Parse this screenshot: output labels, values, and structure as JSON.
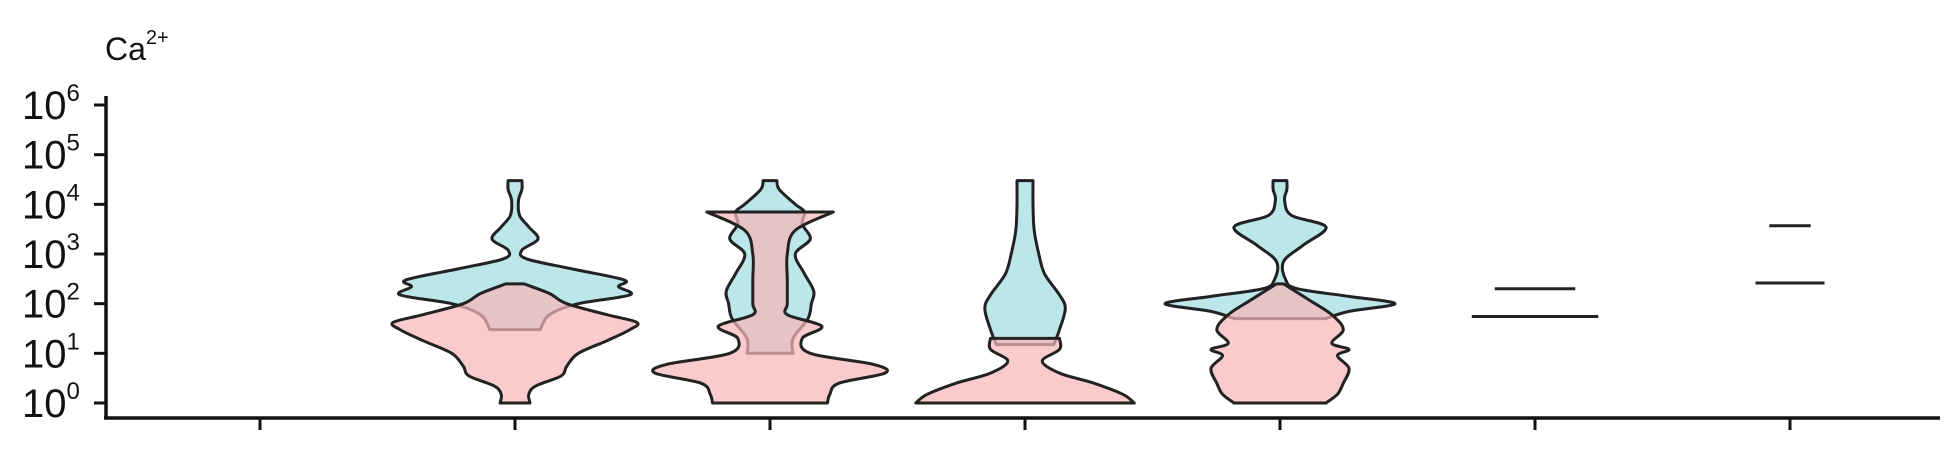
{
  "chart_data": {
    "type": "violin",
    "title_base": "Ca",
    "title_sup": "2+",
    "y_scale": "log10",
    "ylim": [
      1,
      1000000
    ],
    "yticks": [
      {
        "base": "10",
        "exp": "0"
      },
      {
        "base": "10",
        "exp": "1"
      },
      {
        "base": "10",
        "exp": "2"
      },
      {
        "base": "10",
        "exp": "3"
      },
      {
        "base": "10",
        "exp": "4"
      },
      {
        "base": "10",
        "exp": "5"
      },
      {
        "base": "10",
        "exp": "6"
      }
    ],
    "x_tick_count": 7,
    "colors": {
      "upper": "#a8dfe4",
      "lower": "#f7b7b8",
      "outline": "#222222",
      "upper_opacity": 0.78,
      "lower_opacity": 0.72
    },
    "groups": [
      {
        "index": 0,
        "upper": null,
        "lower": null
      },
      {
        "index": 1,
        "upper": {
          "range": [
            30,
            30000
          ],
          "profile": [
            [
              30,
              0.22
            ],
            [
              60,
              0.3
            ],
            [
              100,
              0.55
            ],
            [
              150,
              1.0
            ],
            [
              220,
              0.9
            ],
            [
              300,
              0.95
            ],
            [
              500,
              0.5
            ],
            [
              800,
              0.1
            ],
            [
              1200,
              0.06
            ],
            [
              2000,
              0.2
            ],
            [
              3500,
              0.12
            ],
            [
              6000,
              0.04
            ],
            [
              12000,
              0.03
            ],
            [
              20000,
              0.06
            ],
            [
              30000,
              0.06
            ]
          ]
        },
        "lower": {
          "range": [
            1,
            250
          ],
          "profile": [
            [
              1,
              0.13
            ],
            [
              1.5,
              0.12
            ],
            [
              2.2,
              0.18
            ],
            [
              3.5,
              0.4
            ],
            [
              5.5,
              0.45
            ],
            [
              10,
              0.55
            ],
            [
              18,
              0.8
            ],
            [
              30,
              1.0
            ],
            [
              42,
              1.06
            ],
            [
              60,
              0.8
            ],
            [
              100,
              0.45
            ],
            [
              160,
              0.3
            ],
            [
              250,
              0.08
            ]
          ]
        }
      },
      {
        "index": 2,
        "upper": {
          "range": [
            10,
            30000
          ],
          "profile": [
            [
              10,
              0.2
            ],
            [
              20,
              0.2
            ],
            [
              50,
              0.33
            ],
            [
              100,
              0.36
            ],
            [
              180,
              0.38
            ],
            [
              400,
              0.3
            ],
            [
              1000,
              0.22
            ],
            [
              2000,
              0.35
            ],
            [
              4000,
              0.28
            ],
            [
              7000,
              0.3
            ],
            [
              10000,
              0.22
            ],
            [
              20000,
              0.08
            ],
            [
              30000,
              0.06
            ]
          ]
        },
        "lower": {
          "range": [
            1,
            7000
          ],
          "profile": [
            [
              1,
              0.5
            ],
            [
              1.5,
              0.52
            ],
            [
              2.5,
              0.6
            ],
            [
              4,
              1.0
            ],
            [
              6,
              0.9
            ],
            [
              10,
              0.35
            ],
            [
              20,
              0.28
            ],
            [
              35,
              0.45
            ],
            [
              60,
              0.15
            ],
            [
              100,
              0.15
            ],
            [
              300,
              0.15
            ],
            [
              1000,
              0.15
            ],
            [
              3000,
              0.22
            ],
            [
              7000,
              0.55
            ]
          ]
        }
      },
      {
        "index": 3,
        "upper": {
          "range": [
            15,
            30000
          ],
          "profile": [
            [
              15,
              0.25
            ],
            [
              30,
              0.3
            ],
            [
              80,
              0.35
            ],
            [
              150,
              0.3
            ],
            [
              400,
              0.17
            ],
            [
              1000,
              0.12
            ],
            [
              3000,
              0.08
            ],
            [
              10000,
              0.07
            ],
            [
              30000,
              0.07
            ]
          ]
        },
        "lower": {
          "range": [
            1,
            20
          ],
          "profile": [
            [
              1,
              0.95
            ],
            [
              1.5,
              0.85
            ],
            [
              2.5,
              0.6
            ],
            [
              4,
              0.3
            ],
            [
              7,
              0.15
            ],
            [
              12,
              0.3
            ],
            [
              20,
              0.3
            ]
          ]
        }
      },
      {
        "index": 4,
        "upper": {
          "range": [
            50,
            30000
          ],
          "profile": [
            [
              50,
              0.4
            ],
            [
              70,
              0.6
            ],
            [
              100,
              1.0
            ],
            [
              140,
              0.6
            ],
            [
              200,
              0.15
            ],
            [
              300,
              0.05
            ],
            [
              700,
              0.03
            ],
            [
              1500,
              0.2
            ],
            [
              3500,
              0.4
            ],
            [
              6000,
              0.1
            ],
            [
              12000,
              0.04
            ],
            [
              20000,
              0.06
            ],
            [
              30000,
              0.06
            ]
          ]
        },
        "lower": {
          "range": [
            1,
            250
          ],
          "profile": [
            [
              1,
              0.4
            ],
            [
              1.5,
              0.5
            ],
            [
              2.5,
              0.55
            ],
            [
              5,
              0.6
            ],
            [
              9,
              0.5
            ],
            [
              12,
              0.6
            ],
            [
              16,
              0.45
            ],
            [
              30,
              0.55
            ],
            [
              60,
              0.45
            ],
            [
              120,
              0.25
            ],
            [
              250,
              0.03
            ]
          ]
        }
      },
      {
        "index": 5,
        "upper": {
          "flat": 200,
          "halfwidth": 0.35
        },
        "lower": {
          "flat": 55,
          "halfwidth": 0.55
        }
      },
      {
        "index": 6,
        "upper": {
          "flat": 3700,
          "halfwidth": 0.18
        },
        "lower": {
          "flat": 260,
          "halfwidth": 0.3
        }
      }
    ]
  }
}
